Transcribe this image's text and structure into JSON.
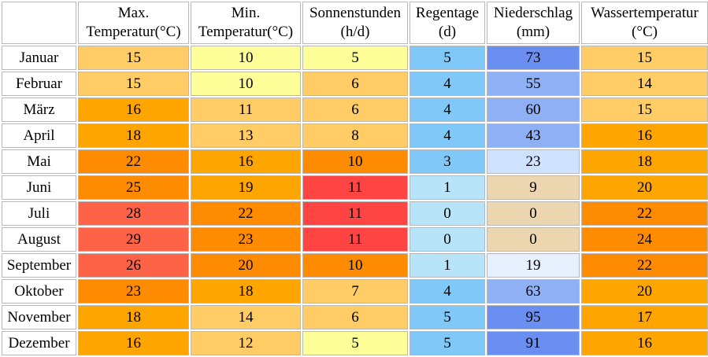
{
  "headers": [
    {
      "line1": "",
      "line2": ""
    },
    {
      "line1": "Max.",
      "line2": "Temperatur(°C)"
    },
    {
      "line1": "Min.",
      "line2": "Temperatur(°C)"
    },
    {
      "line1": "Sonnenstunden",
      "line2": "(h/d)"
    },
    {
      "line1": "Regentage",
      "line2": "(d)"
    },
    {
      "line1": "Niederschlag",
      "line2": "(mm)"
    },
    {
      "line1": "Wassertemperatur",
      "line2": "(°C)"
    }
  ],
  "rows": [
    {
      "month": "Januar",
      "max": "15",
      "min": "10",
      "sun": "5",
      "raindays": "5",
      "precip": "73",
      "water": "15"
    },
    {
      "month": "Februar",
      "max": "15",
      "min": "10",
      "sun": "6",
      "raindays": "4",
      "precip": "55",
      "water": "14"
    },
    {
      "month": "März",
      "max": "16",
      "min": "11",
      "sun": "6",
      "raindays": "4",
      "precip": "60",
      "water": "15"
    },
    {
      "month": "April",
      "max": "18",
      "min": "13",
      "sun": "8",
      "raindays": "4",
      "precip": "43",
      "water": "16"
    },
    {
      "month": "Mai",
      "max": "22",
      "min": "16",
      "sun": "10",
      "raindays": "3",
      "precip": "23",
      "water": "18"
    },
    {
      "month": "Juni",
      "max": "25",
      "min": "19",
      "sun": "11",
      "raindays": "1",
      "precip": "9",
      "water": "20"
    },
    {
      "month": "Juli",
      "max": "28",
      "min": "22",
      "sun": "11",
      "raindays": "0",
      "precip": "0",
      "water": "22"
    },
    {
      "month": "August",
      "max": "29",
      "min": "23",
      "sun": "11",
      "raindays": "0",
      "precip": "0",
      "water": "24"
    },
    {
      "month": "September",
      "max": "26",
      "min": "20",
      "sun": "10",
      "raindays": "1",
      "precip": "19",
      "water": "22"
    },
    {
      "month": "Oktober",
      "max": "23",
      "min": "18",
      "sun": "7",
      "raindays": "4",
      "precip": "63",
      "water": "20"
    },
    {
      "month": "November",
      "max": "18",
      "min": "14",
      "sun": "6",
      "raindays": "5",
      "precip": "95",
      "water": "17"
    },
    {
      "month": "Dezember",
      "max": "16",
      "min": "12",
      "sun": "5",
      "raindays": "5",
      "precip": "91",
      "water": "16"
    }
  ],
  "colors": {
    "temp_yellow": "#ffff99",
    "temp_light_orange": "#ffcc66",
    "temp_orange": "#ffa500",
    "temp_dark_orange": "#ff8c00",
    "temp_red": "#ff6347",
    "sun_yellow": "#ffff99",
    "sun_light_orange": "#ffcc66",
    "sun_dark_orange": "#ff8c00",
    "sun_red": "#ff4444",
    "rain_light": "#b8e4f9",
    "rain_mid": "#80c8f8",
    "precip_sand": "#ecd6b0",
    "precip_very_light": "#e6f0ff",
    "precip_light": "#cfe2ff",
    "precip_mid": "#8fb0f5",
    "precip_dark": "#6a8ff0"
  }
}
